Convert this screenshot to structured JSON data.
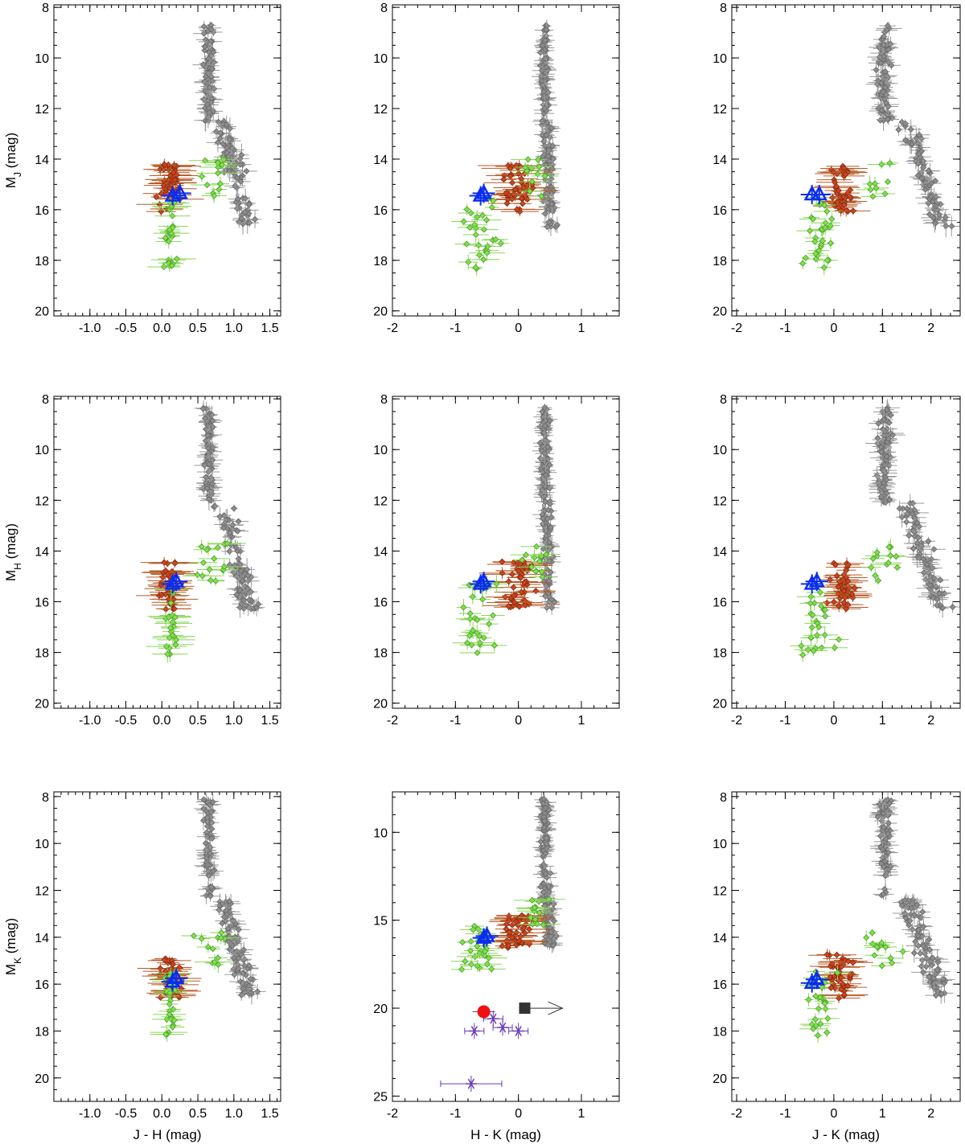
{
  "colors": {
    "field": "#8c8c8c",
    "red_group": "#d2401e",
    "red_group_bar": "#b85a26",
    "green_group": "#7ee34a",
    "green_group_bar": "#8ad65a",
    "target": "#0a2cf0",
    "purple": "#6a3bb5",
    "red_dot": "#f01010",
    "black_square": "#333333"
  },
  "chart_data": [
    {
      "id": "mj-jh",
      "type": "scatter",
      "xlabel": "",
      "ylabel": "M_J (mag)",
      "xlim": [
        -1.5,
        1.65
      ],
      "ylim": [
        20.2,
        7.9
      ],
      "xticks": [
        -1.0,
        -0.5,
        0.0,
        0.5,
        1.0,
        1.5
      ],
      "xtick_labels": [
        "-1.0",
        "-0.5",
        "0.0",
        "0.5",
        "1.0",
        "1.5"
      ],
      "yticks": [
        8,
        10,
        12,
        14,
        16,
        18,
        20
      ],
      "ytick_labels": [
        "8",
        "10",
        "12",
        "14",
        "16",
        "18",
        "20"
      ],
      "minor_x": 0.1,
      "minor_y": 0.5,
      "target": [
        [
          0.15,
          15.45
        ],
        [
          0.25,
          15.35
        ]
      ]
    },
    {
      "id": "mj-hk",
      "type": "scatter",
      "xlabel": "",
      "ylabel": "",
      "xlim": [
        -2.0,
        1.6
      ],
      "ylim": [
        20.2,
        7.9
      ],
      "xticks": [
        -2,
        -1,
        0,
        1
      ],
      "xtick_labels": [
        "-2",
        "-1",
        "0",
        "1"
      ],
      "yticks": [
        8,
        10,
        12,
        14,
        16,
        18,
        20
      ],
      "ytick_labels": [
        "8",
        "10",
        "12",
        "14",
        "16",
        "18",
        "20"
      ],
      "minor_x": 0.2,
      "minor_y": 0.5,
      "target": [
        [
          -0.6,
          15.45
        ],
        [
          -0.55,
          15.35
        ]
      ]
    },
    {
      "id": "mj-jk",
      "type": "scatter",
      "xlabel": "",
      "ylabel": "",
      "xlim": [
        -2.1,
        2.6
      ],
      "ylim": [
        20.2,
        7.9
      ],
      "xticks": [
        -2,
        -1,
        0,
        1,
        2
      ],
      "xtick_labels": [
        "-2",
        "-1",
        "0",
        "1",
        "2"
      ],
      "yticks": [
        8,
        10,
        12,
        14,
        16,
        18,
        20
      ],
      "ytick_labels": [
        "8",
        "10",
        "12",
        "14",
        "16",
        "18",
        "20"
      ],
      "minor_x": 0.2,
      "minor_y": 0.5,
      "target": [
        [
          -0.45,
          15.4
        ],
        [
          -0.3,
          15.4
        ]
      ]
    },
    {
      "id": "mh-jh",
      "type": "scatter",
      "xlabel": "",
      "ylabel": "M_H (mag)",
      "xlim": [
        -1.5,
        1.65
      ],
      "ylim": [
        20.2,
        7.9
      ],
      "xticks": [
        -1.0,
        -0.5,
        0.0,
        0.5,
        1.0,
        1.5
      ],
      "xtick_labels": [
        "-1.0",
        "-0.5",
        "0.0",
        "0.5",
        "1.0",
        "1.5"
      ],
      "yticks": [
        8,
        10,
        12,
        14,
        16,
        18,
        20
      ],
      "ytick_labels": [
        "8",
        "10",
        "12",
        "14",
        "16",
        "18",
        "20"
      ],
      "minor_x": 0.1,
      "minor_y": 0.5,
      "target": [
        [
          0.15,
          15.3
        ],
        [
          0.2,
          15.2
        ]
      ]
    },
    {
      "id": "mh-hk",
      "type": "scatter",
      "xlabel": "",
      "ylabel": "",
      "xlim": [
        -2.0,
        1.6
      ],
      "ylim": [
        20.2,
        7.9
      ],
      "xticks": [
        -2,
        -1,
        0,
        1
      ],
      "xtick_labels": [
        "-2",
        "-1",
        "0",
        "1"
      ],
      "yticks": [
        8,
        10,
        12,
        14,
        16,
        18,
        20
      ],
      "ytick_labels": [
        "8",
        "10",
        "12",
        "14",
        "16",
        "18",
        "20"
      ],
      "minor_x": 0.2,
      "minor_y": 0.5,
      "target": [
        [
          -0.6,
          15.3
        ],
        [
          -0.55,
          15.2
        ]
      ]
    },
    {
      "id": "mh-jk",
      "type": "scatter",
      "xlabel": "",
      "ylabel": "",
      "xlim": [
        -2.1,
        2.6
      ],
      "ylim": [
        20.2,
        7.9
      ],
      "xticks": [
        -2,
        -1,
        0,
        1,
        2
      ],
      "xtick_labels": [
        "-2",
        "-1",
        "0",
        "1",
        "2"
      ],
      "yticks": [
        8,
        10,
        12,
        14,
        16,
        18,
        20
      ],
      "ytick_labels": [
        "8",
        "10",
        "12",
        "14",
        "16",
        "18",
        "20"
      ],
      "minor_x": 0.2,
      "minor_y": 0.5,
      "target": [
        [
          -0.45,
          15.3
        ],
        [
          -0.35,
          15.2
        ]
      ]
    },
    {
      "id": "mk-jh",
      "type": "scatter",
      "xlabel": "J - H (mag)",
      "ylabel": "M_K (mag)",
      "xlim": [
        -1.5,
        1.65
      ],
      "ylim": [
        21.0,
        7.8
      ],
      "xticks": [
        -1.0,
        -0.5,
        0.0,
        0.5,
        1.0,
        1.5
      ],
      "xtick_labels": [
        "-1.0",
        "-0.5",
        "0.0",
        "0.5",
        "1.0",
        "1.5"
      ],
      "yticks": [
        8,
        10,
        12,
        14,
        16,
        18,
        20
      ],
      "ytick_labels": [
        "8",
        "10",
        "12",
        "14",
        "16",
        "18",
        "20"
      ],
      "minor_x": 0.1,
      "minor_y": 0.5,
      "target": [
        [
          0.15,
          15.9
        ],
        [
          0.2,
          15.75
        ]
      ]
    },
    {
      "id": "mk-hk",
      "type": "scatter",
      "xlabel": "H - K (mag)",
      "ylabel": "",
      "xlim": [
        -2.0,
        1.6
      ],
      "ylim": [
        25.3,
        7.7
      ],
      "xticks": [
        -2,
        -1,
        0,
        1
      ],
      "xtick_labels": [
        "-2",
        "-1",
        "0",
        "1"
      ],
      "yticks": [
        10,
        15,
        20,
        25
      ],
      "ytick_labels": [
        "10",
        "15",
        "20",
        "25"
      ],
      "minor_x": 0.2,
      "minor_y": 1.0,
      "target": [
        [
          -0.55,
          16.0
        ],
        [
          -0.5,
          15.9
        ]
      ],
      "extra": {
        "purple_stars": [
          [
            -0.7,
            21.3
          ],
          [
            -0.4,
            20.6
          ],
          [
            -0.25,
            21.1
          ],
          [
            0.0,
            21.3
          ],
          [
            -0.75,
            24.3
          ]
        ],
        "red_dot": [
          -0.55,
          20.2
        ],
        "black_square": [
          0.1,
          20.0
        ],
        "arrow_to": 0.7
      }
    },
    {
      "id": "mk-jk",
      "type": "scatter",
      "xlabel": "J - K (mag)",
      "ylabel": "",
      "xlim": [
        -2.1,
        2.6
      ],
      "ylim": [
        21.0,
        7.8
      ],
      "xticks": [
        -2,
        -1,
        0,
        1,
        2
      ],
      "xtick_labels": [
        "-2",
        "-1",
        "0",
        "1",
        "2"
      ],
      "yticks": [
        8,
        10,
        12,
        14,
        16,
        18,
        20
      ],
      "ytick_labels": [
        "8",
        "10",
        "12",
        "14",
        "16",
        "18",
        "20"
      ],
      "minor_x": 0.2,
      "minor_y": 0.5,
      "target": [
        [
          -0.45,
          15.95
        ],
        [
          -0.35,
          15.8
        ]
      ]
    }
  ]
}
